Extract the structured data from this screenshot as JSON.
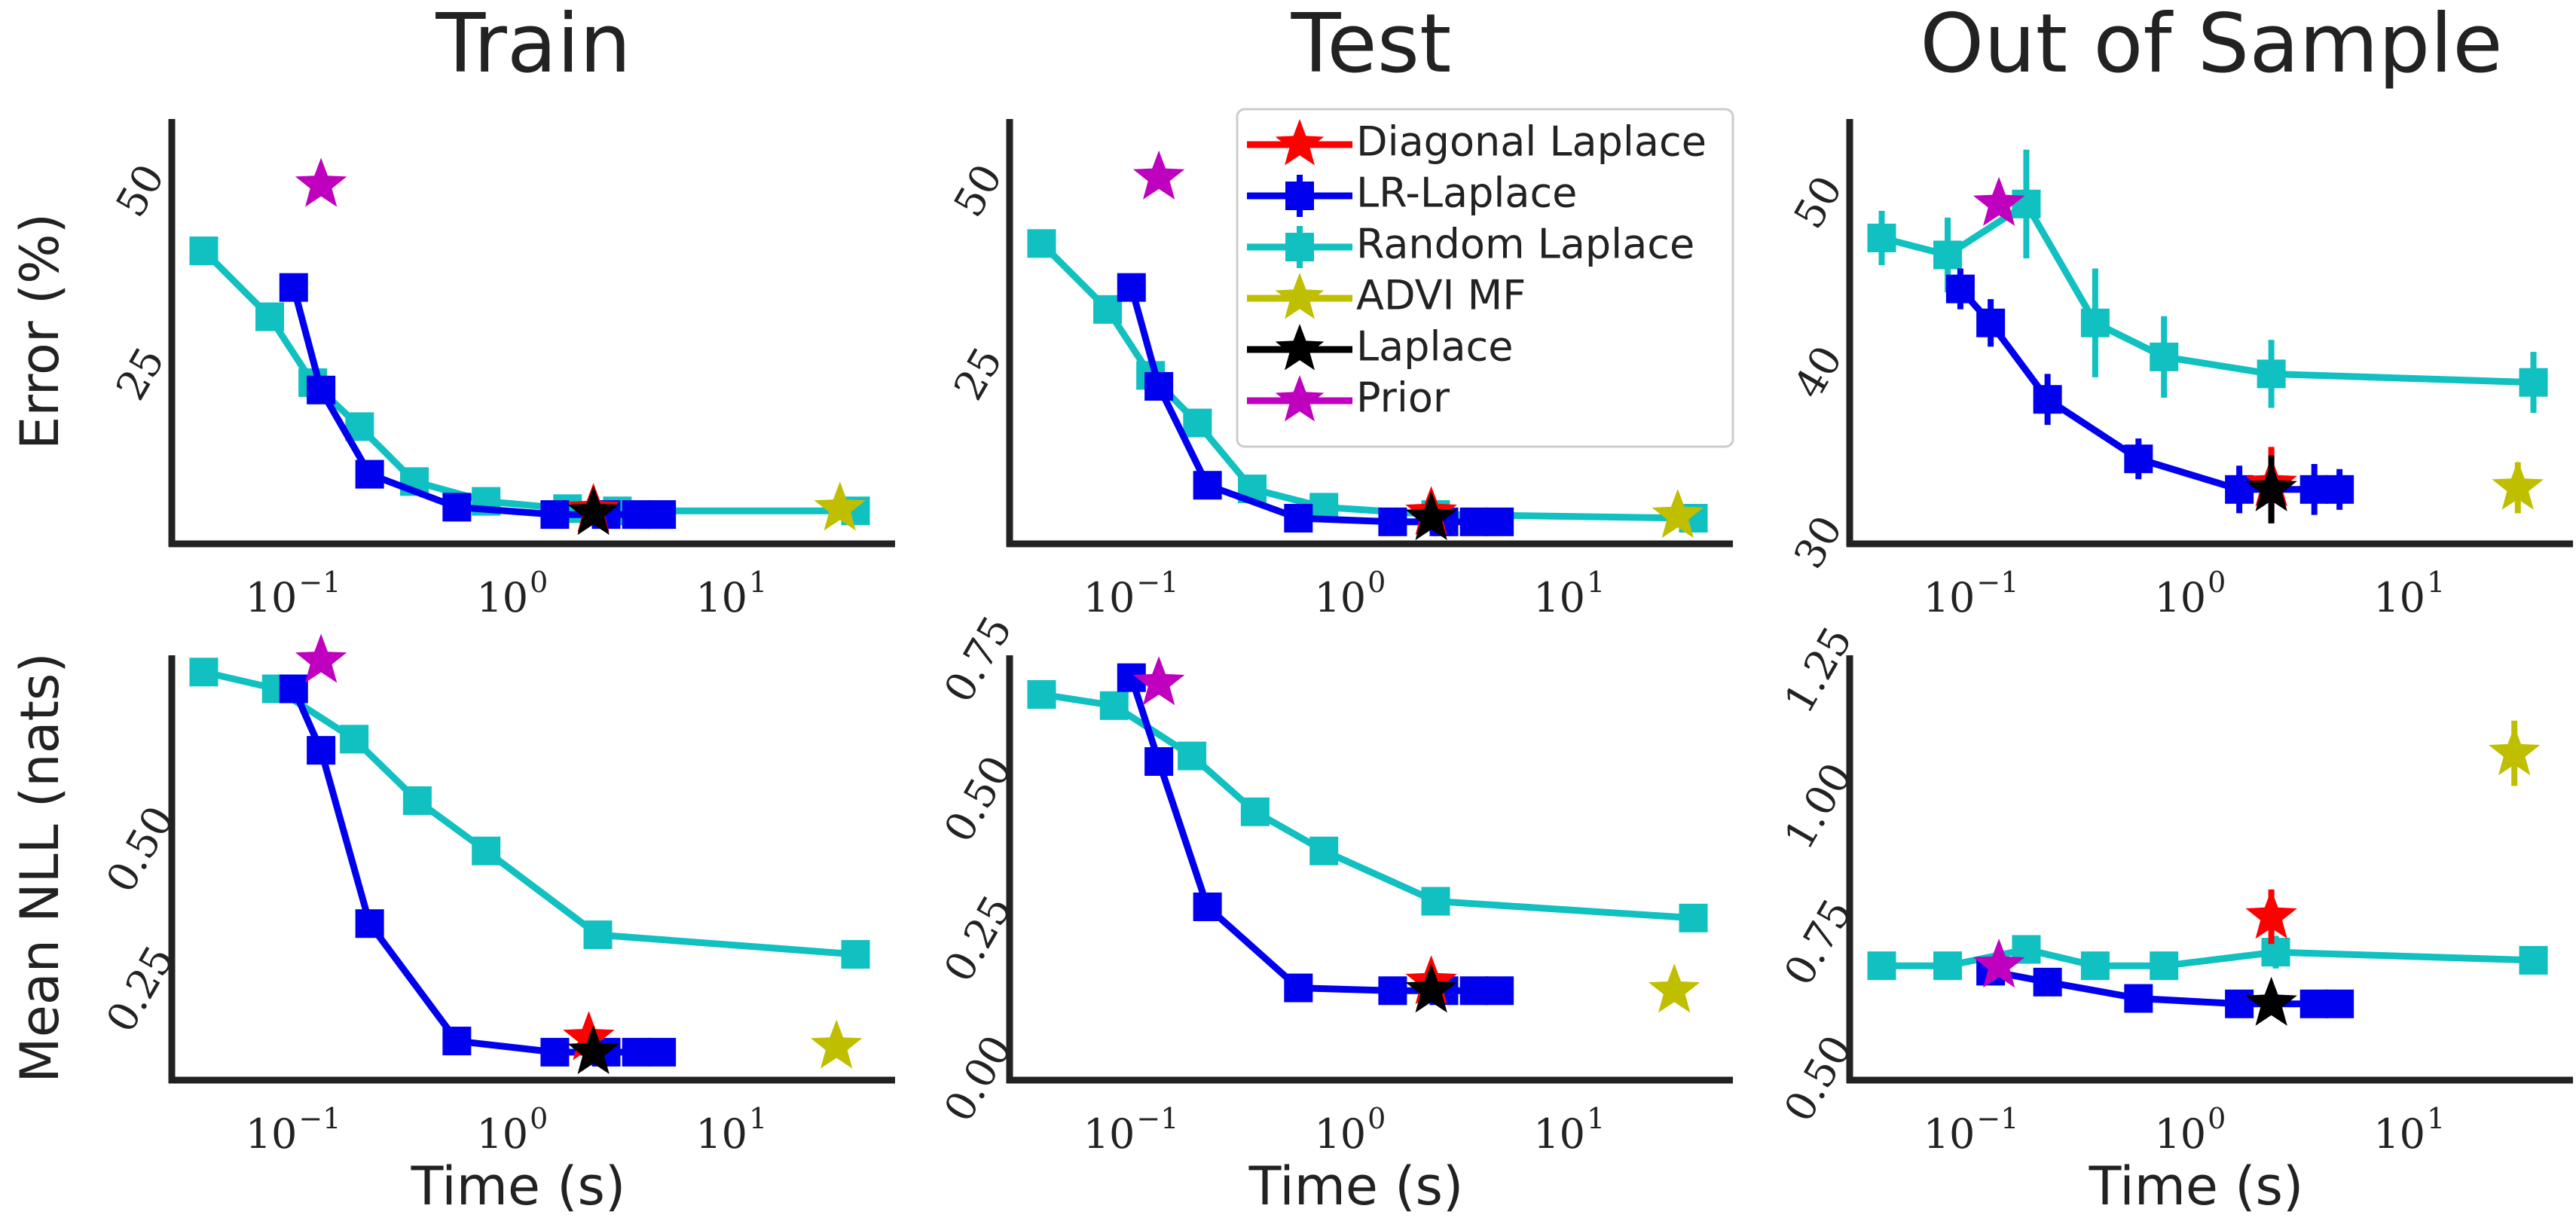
{
  "colors": {
    "Diagonal Laplace": "#ff0000",
    "LR-Laplace": "#0000ee",
    "Random Laplace": "#11c0c0",
    "ADVI MF": "#bfbf00",
    "Laplace": "#000000",
    "Prior": "#bf00bf"
  },
  "legend": {
    "entries": [
      {
        "label": "Diagonal Laplace",
        "marker": "star"
      },
      {
        "label": "LR-Laplace",
        "marker": "square"
      },
      {
        "label": "Random Laplace",
        "marker": "square"
      },
      {
        "label": "ADVI MF",
        "marker": "star"
      },
      {
        "label": "Laplace",
        "marker": "star"
      },
      {
        "label": "Prior",
        "marker": "star"
      }
    ]
  },
  "chart_data": [
    {
      "type": "line",
      "id": "train-error",
      "title": "Train",
      "ylabel": "Error (%)",
      "xlabel": "",
      "xscale": "log",
      "xlim": [
        0.025,
        50
      ],
      "ylim": [
        2,
        60
      ],
      "xticks": [
        {
          "v": 0.1,
          "base": "10",
          "exp": "−1"
        },
        {
          "v": 1,
          "base": "10",
          "exp": "0"
        },
        {
          "v": 10,
          "base": "10",
          "exp": "1"
        }
      ],
      "yticks": [
        {
          "v": 25,
          "label": "25"
        },
        {
          "v": 50,
          "label": "50"
        }
      ],
      "series": [
        {
          "name": "Random Laplace",
          "x": [
            0.035,
            0.07,
            0.11,
            0.18,
            0.32,
            0.68,
            1.6,
            2.7,
            33
          ],
          "y": [
            42,
            33,
            24,
            18,
            10.5,
            7.8,
            6.8,
            6.5,
            6.5
          ],
          "err": [
            1.2,
            0,
            0,
            0,
            0,
            0,
            0,
            0,
            0
          ]
        },
        {
          "name": "LR-Laplace",
          "x": [
            0.09,
            0.12,
            0.2,
            0.5,
            1.4,
            2.4,
            3.3,
            4.3
          ],
          "y": [
            37,
            23,
            11.5,
            7,
            6,
            6,
            6,
            6
          ],
          "err": [
            0,
            0,
            0,
            0,
            0,
            0,
            0,
            0
          ]
        }
      ],
      "points": [
        {
          "name": "Prior",
          "x": 0.12,
          "y": 51,
          "err": 0
        },
        {
          "name": "Diagonal Laplace",
          "x": 2.1,
          "y": 6.6,
          "err": 0
        },
        {
          "name": "Laplace",
          "x": 2.1,
          "y": 6.2,
          "err": 0
        },
        {
          "name": "ADVI MF",
          "x": 28,
          "y": 6.8,
          "err": 0
        }
      ]
    },
    {
      "type": "line",
      "id": "test-error",
      "title": "Test",
      "ylabel": "",
      "xlabel": "",
      "xscale": "log",
      "xlim": [
        0.025,
        50
      ],
      "ylim": [
        2,
        60
      ],
      "xticks": [
        {
          "v": 0.1,
          "base": "10",
          "exp": "−1"
        },
        {
          "v": 1,
          "base": "10",
          "exp": "0"
        },
        {
          "v": 10,
          "base": "10",
          "exp": "1"
        }
      ],
      "yticks": [
        {
          "v": 25,
          "label": "25"
        },
        {
          "v": 50,
          "label": "50"
        }
      ],
      "series": [
        {
          "name": "Random Laplace",
          "x": [
            0.035,
            0.07,
            0.11,
            0.18,
            0.32,
            0.68,
            2.2,
            33
          ],
          "y": [
            43,
            34,
            25,
            18.5,
            9.5,
            7,
            6,
            5.5
          ],
          "err": [
            1.2,
            0,
            0,
            0,
            0,
            0,
            0,
            0
          ]
        },
        {
          "name": "LR-Laplace",
          "x": [
            0.09,
            0.12,
            0.2,
            0.52,
            1.4,
            2.4,
            3.3,
            4.3
          ],
          "y": [
            37,
            23.5,
            10,
            5.5,
            5,
            5,
            5,
            5
          ],
          "err": [
            0,
            0,
            0,
            0,
            0,
            0,
            0,
            0
          ]
        }
      ],
      "points": [
        {
          "name": "Prior",
          "x": 0.12,
          "y": 52,
          "err": 0
        },
        {
          "name": "Diagonal Laplace",
          "x": 2.1,
          "y": 6.2,
          "err": 0
        },
        {
          "name": "Laplace",
          "x": 2.1,
          "y": 5.5,
          "err": 0
        },
        {
          "name": "ADVI MF",
          "x": 28,
          "y": 5.8,
          "err": 0
        }
      ]
    },
    {
      "type": "line",
      "id": "oos-error",
      "title": "Out of Sample",
      "ylabel": "",
      "xlabel": "",
      "xscale": "log",
      "xlim": [
        0.025,
        50
      ],
      "ylim": [
        30,
        55
      ],
      "xticks": [
        {
          "v": 0.1,
          "base": "10",
          "exp": "−1"
        },
        {
          "v": 1,
          "base": "10",
          "exp": "0"
        },
        {
          "v": 10,
          "base": "10",
          "exp": "1"
        }
      ],
      "yticks": [
        {
          "v": 30,
          "label": "30"
        },
        {
          "v": 40,
          "label": "40"
        },
        {
          "v": 50,
          "label": "50"
        }
      ],
      "series": [
        {
          "name": "Random Laplace",
          "x": [
            0.035,
            0.07,
            0.16,
            0.33,
            0.68,
            2.1,
            33
          ],
          "y": [
            48,
            47,
            50,
            43,
            41,
            40,
            39.5
          ],
          "err": [
            1.6,
            2.2,
            3.2,
            3.2,
            2.4,
            2.0,
            1.8
          ]
        },
        {
          "name": "LR-Laplace",
          "x": [
            0.08,
            0.11,
            0.2,
            0.52,
            1.5,
            3.3,
            4.3
          ],
          "y": [
            45,
            43,
            38.5,
            35,
            33.2,
            33.2,
            33.2
          ],
          "err": [
            1.2,
            1.4,
            1.5,
            1.2,
            1.4,
            1.5,
            1.2
          ]
        }
      ],
      "points": [
        {
          "name": "Prior",
          "x": 0.12,
          "y": 50,
          "err": 0
        },
        {
          "name": "Diagonal Laplace",
          "x": 2.1,
          "y": 33.5,
          "err": 2.2
        },
        {
          "name": "Laplace",
          "x": 2.1,
          "y": 33.2,
          "err": 2.0
        },
        {
          "name": "ADVI MF",
          "x": 28,
          "y": 33.3,
          "err": 1.5
        }
      ]
    },
    {
      "type": "line",
      "id": "train-nll",
      "title": "",
      "ylabel": "Mean NLL (nats)",
      "xlabel": "Time (s)",
      "xscale": "log",
      "xlim": [
        0.025,
        50
      ],
      "ylim": [
        0.09,
        0.85
      ],
      "xticks": [
        {
          "v": 0.1,
          "base": "10",
          "exp": "−1"
        },
        {
          "v": 1,
          "base": "10",
          "exp": "0"
        },
        {
          "v": 10,
          "base": "10",
          "exp": "1"
        }
      ],
      "yticks": [
        {
          "v": 0.25,
          "label": "0.25"
        },
        {
          "v": 0.5,
          "label": "0.50"
        }
      ],
      "series": [
        {
          "name": "Random Laplace",
          "x": [
            0.035,
            0.075,
            0.17,
            0.33,
            0.68,
            2.2,
            33
          ],
          "y": [
            0.82,
            0.79,
            0.7,
            0.59,
            0.5,
            0.35,
            0.315
          ],
          "err": [
            0,
            0,
            0,
            0,
            0,
            0,
            0
          ]
        },
        {
          "name": "LR-Laplace",
          "x": [
            0.09,
            0.12,
            0.2,
            0.5,
            1.4,
            2.4,
            3.3,
            4.3
          ],
          "y": [
            0.79,
            0.68,
            0.37,
            0.16,
            0.14,
            0.14,
            0.14,
            0.14
          ],
          "err": [
            0,
            0,
            0,
            0,
            0,
            0,
            0,
            0
          ]
        }
      ],
      "points": [
        {
          "name": "Prior",
          "x": 0.12,
          "y": 0.84,
          "err": 0
        },
        {
          "name": "Diagonal Laplace",
          "x": 2.0,
          "y": 0.165,
          "err": 0
        },
        {
          "name": "Laplace",
          "x": 2.1,
          "y": 0.14,
          "err": 0
        },
        {
          "name": "ADVI MF",
          "x": 27,
          "y": 0.15,
          "err": 0
        }
      ]
    },
    {
      "type": "line",
      "id": "test-nll",
      "title": "",
      "ylabel": "",
      "xlabel": "Time (s)",
      "xscale": "log",
      "xlim": [
        0.025,
        50
      ],
      "ylim": [
        0.0,
        0.76
      ],
      "xticks": [
        {
          "v": 0.1,
          "base": "10",
          "exp": "−1"
        },
        {
          "v": 1,
          "base": "10",
          "exp": "0"
        },
        {
          "v": 10,
          "base": "10",
          "exp": "1"
        }
      ],
      "yticks": [
        {
          "v": 0.0,
          "label": "0.00"
        },
        {
          "v": 0.25,
          "label": "0.25"
        },
        {
          "v": 0.5,
          "label": "0.50"
        },
        {
          "v": 0.75,
          "label": "0.75"
        }
      ],
      "series": [
        {
          "name": "Random Laplace",
          "x": [
            0.035,
            0.075,
            0.17,
            0.33,
            0.68,
            2.2,
            33
          ],
          "y": [
            0.69,
            0.67,
            0.58,
            0.48,
            0.41,
            0.32,
            0.29
          ],
          "err": [
            0,
            0,
            0,
            0,
            0,
            0,
            0
          ]
        },
        {
          "name": "LR-Laplace",
          "x": [
            0.09,
            0.12,
            0.2,
            0.52,
            1.4,
            2.4,
            3.3,
            4.3
          ],
          "y": [
            0.72,
            0.57,
            0.31,
            0.165,
            0.16,
            0.16,
            0.16,
            0.16
          ],
          "err": [
            0,
            0,
            0,
            0,
            0,
            0,
            0,
            0
          ]
        }
      ],
      "points": [
        {
          "name": "Prior",
          "x": 0.12,
          "y": 0.71,
          "err": 0
        },
        {
          "name": "Diagonal Laplace",
          "x": 2.1,
          "y": 0.175,
          "err": 0
        },
        {
          "name": "Laplace",
          "x": 2.1,
          "y": 0.16,
          "err": 0
        },
        {
          "name": "ADVI MF",
          "x": 27,
          "y": 0.16,
          "err": 0
        }
      ]
    },
    {
      "type": "line",
      "id": "oos-nll",
      "title": "",
      "ylabel": "",
      "xlabel": "Time (s)",
      "xscale": "log",
      "xlim": [
        0.025,
        50
      ],
      "ylim": [
        0.5,
        1.28
      ],
      "xticks": [
        {
          "v": 0.1,
          "base": "10",
          "exp": "−1"
        },
        {
          "v": 1,
          "base": "10",
          "exp": "0"
        },
        {
          "v": 10,
          "base": "10",
          "exp": "1"
        }
      ],
      "yticks": [
        {
          "v": 0.5,
          "label": "0.50"
        },
        {
          "v": 0.75,
          "label": "0.75"
        },
        {
          "v": 1.0,
          "label": "1.00"
        },
        {
          "v": 1.25,
          "label": "1.25"
        }
      ],
      "series": [
        {
          "name": "Random Laplace",
          "x": [
            0.035,
            0.07,
            0.16,
            0.33,
            0.68,
            2.2,
            33
          ],
          "y": [
            0.71,
            0.71,
            0.74,
            0.71,
            0.71,
            0.735,
            0.72
          ],
          "err": [
            0,
            0,
            0,
            0,
            0,
            0.03,
            0.02
          ]
        },
        {
          "name": "LR-Laplace",
          "x": [
            0.11,
            0.2,
            0.52,
            1.5,
            3.3,
            4.3
          ],
          "y": [
            0.7,
            0.68,
            0.65,
            0.64,
            0.64,
            0.64
          ],
          "err": [
            0,
            0,
            0,
            0,
            0,
            0
          ]
        }
      ],
      "points": [
        {
          "name": "Prior",
          "x": 0.12,
          "y": 0.71,
          "err": 0
        },
        {
          "name": "Diagonal Laplace",
          "x": 2.1,
          "y": 0.8,
          "err": 0.05
        },
        {
          "name": "Laplace",
          "x": 2.1,
          "y": 0.64,
          "err": 0
        },
        {
          "name": "ADVI MF",
          "x": 27,
          "y": 1.1,
          "err": 0.06
        }
      ]
    }
  ]
}
